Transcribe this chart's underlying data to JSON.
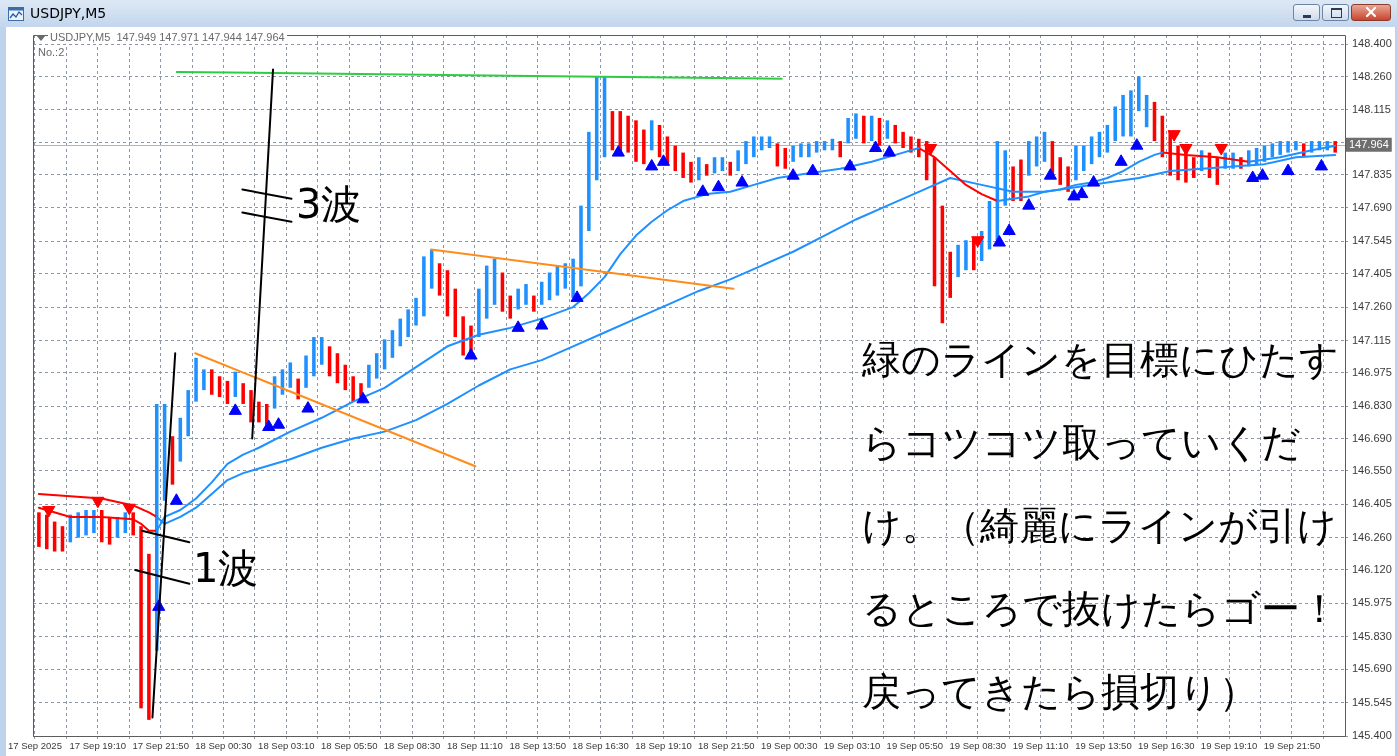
{
  "chart_data": {
    "type": "bar",
    "title": "USDJPY,M5",
    "subtitle": "USDJPY,M5  147.949 147.971 147.944 147.964",
    "annotations": [
      "No.:2",
      "1波",
      "3波",
      "緑のラインを目標にひたすらコツコツ取っていくだけ。（綺麗にラインが引けるところで抜けたらゴー！戻ってきたら損切り）"
    ],
    "xlim": [
      "2025-09-17T16:25",
      "2025-09-20T00:05"
    ],
    "xticks": [
      {
        "value": "2025-09-17T16:30",
        "label": "17 Sep 2025"
      },
      {
        "value": "2025-09-17T17:50",
        "label": null
      },
      {
        "value": "2025-09-17T19:10",
        "label": "17 Sep 19:10"
      },
      {
        "value": "2025-09-17T20:30",
        "label": null
      },
      {
        "value": "2025-09-17T21:50",
        "label": "17 Sep 21:50"
      },
      {
        "value": "2025-09-17T23:10",
        "label": null
      },
      {
        "value": "2025-09-18T00:30",
        "label": "18 Sep 00:30"
      },
      {
        "value": "2025-09-18T01:50",
        "label": null
      },
      {
        "value": "2025-09-18T03:10",
        "label": "18 Sep 03:10"
      },
      {
        "value": "2025-09-18T04:30",
        "label": null
      },
      {
        "value": "2025-09-18T05:50",
        "label": "18 Sep 05:50"
      },
      {
        "value": "2025-09-18T07:10",
        "label": null
      },
      {
        "value": "2025-09-18T08:30",
        "label": "18 Sep 08:30"
      },
      {
        "value": "2025-09-18T09:50",
        "label": null
      },
      {
        "value": "2025-09-18T11:10",
        "label": "18 Sep 11:10"
      },
      {
        "value": "2025-09-18T12:30",
        "label": null
      },
      {
        "value": "2025-09-18T13:50",
        "label": "18 Sep 13:50"
      },
      {
        "value": "2025-09-18T15:10",
        "label": null
      },
      {
        "value": "2025-09-18T16:30",
        "label": "18 Sep 16:30"
      },
      {
        "value": "2025-09-18T17:50",
        "label": null
      },
      {
        "value": "2025-09-18T19:10",
        "label": "18 Sep 19:10"
      },
      {
        "value": "2025-09-18T20:30",
        "label": null
      },
      {
        "value": "2025-09-18T21:50",
        "label": "18 Sep 21:50"
      },
      {
        "value": "2025-09-18T23:10",
        "label": null
      },
      {
        "value": "2025-09-19T00:30",
        "label": "19 Sep 00:30"
      },
      {
        "value": "2025-09-19T01:50",
        "label": null
      },
      {
        "value": "2025-09-19T03:10",
        "label": "19 Sep 03:10"
      },
      {
        "value": "2025-09-19T04:30",
        "label": null
      },
      {
        "value": "2025-09-19T05:50",
        "label": "19 Sep 05:50"
      },
      {
        "value": "2025-09-19T07:10",
        "label": null
      },
      {
        "value": "2025-09-19T08:30",
        "label": "19 Sep 08:30"
      },
      {
        "value": "2025-09-19T09:50",
        "label": null
      },
      {
        "value": "2025-09-19T11:10",
        "label": "19 Sep 11:10"
      },
      {
        "value": "2025-09-19T12:30",
        "label": null
      },
      {
        "value": "2025-09-19T13:50",
        "label": "19 Sep 13:50"
      },
      {
        "value": "2025-09-19T15:10",
        "label": null
      },
      {
        "value": "2025-09-19T16:30",
        "label": "19 Sep 16:30"
      },
      {
        "value": "2025-09-19T17:50",
        "label": null
      },
      {
        "value": "2025-09-19T19:10",
        "label": "19 Sep 19:10"
      },
      {
        "value": "2025-09-19T20:30",
        "label": null
      },
      {
        "value": "2025-09-19T21:50",
        "label": "19 Sep 21:50"
      },
      {
        "value": "2025-09-19T23:10",
        "label": null
      }
    ],
    "ylim": [
      145.4,
      148.44
    ],
    "yticks": [
      {
        "value": 148.4,
        "label": "148.400"
      },
      {
        "value": 148.26,
        "label": "148.260"
      },
      {
        "value": 148.115,
        "label": "148.115"
      },
      {
        "value": 147.975,
        "label": null
      },
      {
        "value": 147.835,
        "label": "147.835"
      },
      {
        "value": 147.69,
        "label": "147.690"
      },
      {
        "value": 147.545,
        "label": "147.545"
      },
      {
        "value": 147.405,
        "label": "147.405"
      },
      {
        "value": 147.26,
        "label": "147.260"
      },
      {
        "value": 147.115,
        "label": "147.115"
      },
      {
        "value": 146.975,
        "label": "146.975"
      },
      {
        "value": 146.83,
        "label": "146.830"
      },
      {
        "value": 146.69,
        "label": "146.690"
      },
      {
        "value": 146.55,
        "label": "146.550"
      },
      {
        "value": 146.405,
        "label": "146.405"
      },
      {
        "value": 146.26,
        "label": "146.260"
      },
      {
        "value": 146.12,
        "label": "146.120"
      },
      {
        "value": 145.975,
        "label": "145.975"
      },
      {
        "value": 145.83,
        "label": "145.830"
      },
      {
        "value": 145.69,
        "label": "145.690"
      },
      {
        "value": 145.545,
        "label": "145.545"
      },
      {
        "value": 145.4,
        "label": "145.400"
      }
    ],
    "grid": true,
    "ref_lines": [
      {
        "axis": "y",
        "value": 147.964,
        "label": "147.964",
        "color": "#b4b4b4"
      }
    ],
    "series": [
      {
        "color": "#1e90ff",
        "x": [
          "2025-09-17T18:00",
          "2025-09-17T18:20",
          "2025-09-17T18:40",
          "2025-09-17T19:00",
          "2025-09-17T20:00",
          "2025-09-17T20:20",
          "2025-09-17T21:40",
          "2025-09-17T22:00",
          "2025-09-17T22:40",
          "2025-09-17T23:00",
          "2025-09-17T23:20",
          "2025-09-17T23:40",
          "2025-09-18T01:00",
          "2025-09-18T02:40",
          "2025-09-18T03:00",
          "2025-09-18T03:20",
          "2025-09-18T04:00",
          "2025-09-18T04:20",
          "2025-09-18T04:40",
          "2025-09-18T06:40",
          "2025-09-18T07:00",
          "2025-09-18T07:20",
          "2025-09-18T07:40",
          "2025-09-18T08:00",
          "2025-09-18T08:20",
          "2025-09-18T08:40",
          "2025-09-18T09:00",
          "2025-09-18T09:20",
          "2025-09-18T11:20",
          "2025-09-18T11:40",
          "2025-09-18T12:00",
          "2025-09-18T13:00",
          "2025-09-18T13:20",
          "2025-09-18T14:00",
          "2025-09-18T14:20",
          "2025-09-18T14:40",
          "2025-09-18T15:00",
          "2025-09-18T15:20",
          "2025-09-18T15:40",
          "2025-09-18T16:00",
          "2025-09-18T16:20",
          "2025-09-18T16:40",
          "2025-09-18T18:40",
          "2025-09-18T20:40",
          "2025-09-18T21:20",
          "2025-09-18T21:40",
          "2025-09-18T22:20",
          "2025-09-18T22:40",
          "2025-09-18T23:00",
          "2025-09-18T23:20",
          "2025-09-18T23:40",
          "2025-09-19T00:40",
          "2025-09-19T01:00",
          "2025-09-19T01:20",
          "2025-09-19T01:40",
          "2025-09-19T02:00",
          "2025-09-19T02:20",
          "2025-09-19T03:00",
          "2025-09-19T03:20",
          "2025-09-19T04:00",
          "2025-09-19T04:40",
          "2025-09-19T07:40",
          "2025-09-19T08:00",
          "2025-09-19T08:40",
          "2025-09-19T09:00",
          "2025-09-19T09:20",
          "2025-09-19T09:40",
          "2025-09-19T10:40",
          "2025-09-19T11:00",
          "2025-09-19T11:20",
          "2025-09-19T12:40",
          "2025-09-19T13:00",
          "2025-09-19T13:20",
          "2025-09-19T13:40",
          "2025-09-19T14:00",
          "2025-09-19T14:20",
          "2025-09-19T14:40",
          "2025-09-19T15:00",
          "2025-09-19T15:20",
          "2025-09-19T15:40",
          "2025-09-19T18:00",
          "2025-09-19T19:00",
          "2025-09-19T19:20",
          "2025-09-19T20:00",
          "2025-09-19T20:20",
          "2025-09-19T20:40",
          "2025-09-19T21:00",
          "2025-09-19T21:20",
          "2025-09-19T21:40",
          "2025-09-19T22:00",
          "2025-09-19T22:40",
          "2025-09-19T23:00",
          "2025-09-19T23:20"
        ],
        "base": [
          146.24,
          146.26,
          146.27,
          146.28,
          146.26,
          146.28,
          145.77,
          146.42,
          146.59,
          146.7,
          146.85,
          146.9,
          146.87,
          146.82,
          146.88,
          146.91,
          146.91,
          146.96,
          147.01,
          146.91,
          146.95,
          146.99,
          147.04,
          147.09,
          147.13,
          147.18,
          147.22,
          147.34,
          147.13,
          147.21,
          147.27,
          147.25,
          147.27,
          147.27,
          147.29,
          147.31,
          147.34,
          147.3,
          147.35,
          147.59,
          147.81,
          147.91,
          147.94,
          147.81,
          147.84,
          147.85,
          147.85,
          147.88,
          147.91,
          147.94,
          147.95,
          147.89,
          147.91,
          147.91,
          147.93,
          147.94,
          147.94,
          147.97,
          147.99,
          147.98,
          147.99,
          147.39,
          147.42,
          147.46,
          147.51,
          147.55,
          147.7,
          147.83,
          147.87,
          147.89,
          147.81,
          147.85,
          147.88,
          147.91,
          147.93,
          147.98,
          148.0,
          148.0,
          148.11,
          148.04,
          147.85,
          147.86,
          147.86,
          147.87,
          147.88,
          147.89,
          147.91,
          147.92,
          147.93,
          147.94,
          147.93,
          147.94,
          147.94
        ],
        "values": [
          0.12,
          0.11,
          0.11,
          0.1,
          0.09,
          0.09,
          1.07,
          0.42,
          0.19,
          0.2,
          0.19,
          0.09,
          0.11,
          0.14,
          0.11,
          0.11,
          0.14,
          0.17,
          0.12,
          0.1,
          0.11,
          0.13,
          0.12,
          0.12,
          0.12,
          0.12,
          0.26,
          0.17,
          0.21,
          0.23,
          0.2,
          0.09,
          0.09,
          0.1,
          0.12,
          0.13,
          0.11,
          0.17,
          0.35,
          0.43,
          0.45,
          0.35,
          0.13,
          0.1,
          0.07,
          0.06,
          0.09,
          0.1,
          0.09,
          0.06,
          0.05,
          0.07,
          0.06,
          0.06,
          0.05,
          0.04,
          0.05,
          0.11,
          0.11,
          0.11,
          0.08,
          0.14,
          0.13,
          0.13,
          0.21,
          0.43,
          0.24,
          0.15,
          0.13,
          0.13,
          0.15,
          0.11,
          0.12,
          0.11,
          0.12,
          0.15,
          0.18,
          0.2,
          0.15,
          0.14,
          0.09,
          0.07,
          0.07,
          0.07,
          0.07,
          0.07,
          0.06,
          0.06,
          0.05,
          0.04,
          0.05,
          0.04,
          0.04
        ]
      },
      {
        "color": "#ff0000",
        "x": [
          "2025-09-17T16:40",
          "2025-09-17T17:00",
          "2025-09-17T17:20",
          "2025-09-17T17:40",
          "2025-09-17T19:20",
          "2025-09-17T19:40",
          "2025-09-17T20:40",
          "2025-09-17T21:00",
          "2025-09-17T21:20",
          "2025-09-17T22:20",
          "2025-09-18T00:00",
          "2025-09-18T00:20",
          "2025-09-18T00:40",
          "2025-09-18T01:20",
          "2025-09-18T01:40",
          "2025-09-18T02:00",
          "2025-09-18T02:20",
          "2025-09-18T03:40",
          "2025-09-18T05:00",
          "2025-09-18T05:20",
          "2025-09-18T05:40",
          "2025-09-18T06:00",
          "2025-09-18T06:20",
          "2025-09-18T09:40",
          "2025-09-18T10:00",
          "2025-09-18T10:20",
          "2025-09-18T10:40",
          "2025-09-18T11:00",
          "2025-09-18T12:20",
          "2025-09-18T12:40",
          "2025-09-18T13:40",
          "2025-09-18T17:00",
          "2025-09-18T17:20",
          "2025-09-18T17:40",
          "2025-09-18T18:00",
          "2025-09-18T18:20",
          "2025-09-18T19:00",
          "2025-09-18T19:20",
          "2025-09-18T19:40",
          "2025-09-18T20:00",
          "2025-09-18T20:20",
          "2025-09-18T21:00",
          "2025-09-18T22:00",
          "2025-09-19T00:00",
          "2025-09-19T00:20",
          "2025-09-19T02:40",
          "2025-09-19T03:40",
          "2025-09-19T04:20",
          "2025-09-19T05:00",
          "2025-09-19T05:20",
          "2025-09-19T05:40",
          "2025-09-19T06:00",
          "2025-09-19T06:20",
          "2025-09-19T06:40",
          "2025-09-19T07:00",
          "2025-09-19T07:20",
          "2025-09-19T08:20",
          "2025-09-19T10:00",
          "2025-09-19T10:20",
          "2025-09-19T11:40",
          "2025-09-19T12:00",
          "2025-09-19T12:20",
          "2025-09-19T16:00",
          "2025-09-19T16:20",
          "2025-09-19T16:40",
          "2025-09-19T17:00",
          "2025-09-19T17:20",
          "2025-09-19T17:40",
          "2025-09-19T18:20",
          "2025-09-19T18:40",
          "2025-09-19T19:40",
          "2025-09-19T22:20",
          "2025-09-19T23:40"
        ],
        "base": [
          146.22,
          146.21,
          146.2,
          146.2,
          146.24,
          146.23,
          146.27,
          145.52,
          145.47,
          146.49,
          146.88,
          146.87,
          146.84,
          146.84,
          146.76,
          146.76,
          146.75,
          146.86,
          146.96,
          146.93,
          146.9,
          146.85,
          146.87,
          147.31,
          147.22,
          147.13,
          147.05,
          147.05,
          147.24,
          147.21,
          147.24,
          147.94,
          147.92,
          147.93,
          147.89,
          147.88,
          147.91,
          147.88,
          147.85,
          147.82,
          147.8,
          147.83,
          147.83,
          147.87,
          147.86,
          147.91,
          147.97,
          147.96,
          147.97,
          147.95,
          147.93,
          147.91,
          147.81,
          147.35,
          147.19,
          147.3,
          147.42,
          147.72,
          147.72,
          147.83,
          147.79,
          147.76,
          147.98,
          147.91,
          147.83,
          147.81,
          147.8,
          147.82,
          147.82,
          147.79,
          147.86,
          147.91,
          147.93
        ],
        "values": [
          0.15,
          0.15,
          0.13,
          0.11,
          0.14,
          0.12,
          0.1,
          0.79,
          0.72,
          0.21,
          0.11,
          0.09,
          0.1,
          0.09,
          0.14,
          0.09,
          0.09,
          0.09,
          0.13,
          0.13,
          0.11,
          0.11,
          0.06,
          0.14,
          0.2,
          0.21,
          0.17,
          0.13,
          0.17,
          0.1,
          0.07,
          0.17,
          0.19,
          0.16,
          0.18,
          0.15,
          0.14,
          0.12,
          0.11,
          0.11,
          0.09,
          0.05,
          0.06,
          0.1,
          0.09,
          0.07,
          0.12,
          0.12,
          0.08,
          0.07,
          0.07,
          0.08,
          0.17,
          0.56,
          0.51,
          0.2,
          0.14,
          0.15,
          0.18,
          0.15,
          0.12,
          0.11,
          0.17,
          0.18,
          0.19,
          0.15,
          0.14,
          0.09,
          0.11,
          0.12,
          0.05,
          0.06,
          0.05
        ]
      },
      {
        "type": "line",
        "color": "#ff0000",
        "x": [
          "2025-09-17T16:40",
          "2025-09-17T18:00",
          "2025-09-17T19:20",
          "2025-09-17T20:40",
          "2025-09-17T21:20",
          "2025-09-17T21:40"
        ],
        "values": [
          146.45,
          146.44,
          146.43,
          146.4,
          146.37,
          146.35
        ]
      },
      {
        "type": "line",
        "color": "#1e90ff",
        "x": [
          "2025-09-17T21:40",
          "2025-09-17T22:00",
          "2025-09-17T22:40",
          "2025-09-17T23:20",
          "2025-09-18T00:00",
          "2025-09-18T00:40",
          "2025-09-18T01:20",
          "2025-09-18T02:00",
          "2025-09-18T03:20",
          "2025-09-18T04:40",
          "2025-09-18T06:00",
          "2025-09-18T07:20",
          "2025-09-18T08:40",
          "2025-09-18T10:00",
          "2025-09-18T11:20",
          "2025-09-18T12:40",
          "2025-09-18T14:00",
          "2025-09-18T15:20",
          "2025-09-18T16:40",
          "2025-09-18T18:00",
          "2025-09-18T19:20",
          "2025-09-18T20:40",
          "2025-09-18T22:00",
          "2025-09-18T23:20",
          "2025-09-19T00:40",
          "2025-09-19T02:00",
          "2025-09-19T03:20",
          "2025-09-19T04:40",
          "2025-09-19T06:00",
          "2025-09-19T07:20",
          "2025-09-19T08:40",
          "2025-09-19T10:00",
          "2025-09-19T11:20",
          "2025-09-19T12:40",
          "2025-09-19T14:00",
          "2025-09-19T15:20",
          "2025-09-19T16:40",
          "2025-09-19T18:00",
          "2025-09-19T19:20",
          "2025-09-19T20:40",
          "2025-09-19T22:00",
          "2025-09-19T23:40"
        ],
        "values": [
          146.35,
          146.32,
          146.35,
          146.39,
          146.45,
          146.51,
          146.54,
          146.56,
          146.6,
          146.65,
          146.69,
          146.72,
          146.77,
          146.84,
          146.92,
          146.99,
          147.03,
          147.09,
          147.15,
          147.21,
          147.27,
          147.33,
          147.38,
          147.44,
          147.5,
          147.57,
          147.64,
          147.7,
          147.76,
          147.82,
          147.79,
          147.76,
          147.76,
          147.78,
          147.8,
          147.82,
          147.85,
          147.86,
          147.87,
          147.88,
          147.91,
          147.92
        ]
      },
      {
        "type": "line",
        "color": "#ff0000",
        "x": [
          "2025-09-17T16:40",
          "2025-09-17T18:00",
          "2025-09-17T19:20",
          "2025-09-17T20:40",
          "2025-09-17T21:00",
          "2025-09-17T21:20",
          "2025-09-17T21:40",
          "2025-09-18T12:40",
          "2025-09-19T06:00",
          "2025-09-19T06:40",
          "2025-09-19T07:20",
          "2025-09-19T08:00",
          "2025-09-19T08:40",
          "2025-09-19T09:20",
          "2025-09-19T12:40",
          "2025-09-19T16:20",
          "2025-09-19T17:20",
          "2025-09-19T18:40",
          "2025-09-19T20:00"
        ],
        "values": [
          146.39,
          146.35,
          146.35,
          146.34,
          146.32,
          146.29,
          146.29,
          null,
          147.95,
          147.91,
          147.85,
          147.79,
          147.75,
          147.72,
          null,
          147.93,
          147.92,
          147.91,
          147.89
        ]
      },
      {
        "type": "line",
        "color": "#1e90ff",
        "x": [
          "2025-09-17T21:40",
          "2025-09-17T22:00",
          "2025-09-17T22:40",
          "2025-09-17T23:20",
          "2025-09-18T00:00",
          "2025-09-18T00:40",
          "2025-09-18T01:20",
          "2025-09-18T02:00",
          "2025-09-18T03:20",
          "2025-09-18T04:40",
          "2025-09-18T06:00",
          "2025-09-18T07:20",
          "2025-09-18T08:40",
          "2025-09-18T10:00",
          "2025-09-18T11:20",
          "2025-09-18T12:40",
          "2025-09-18T14:00",
          "2025-09-18T15:20",
          "2025-09-18T16:00",
          "2025-09-18T16:40",
          "2025-09-18T17:20",
          "2025-09-18T18:00",
          "2025-09-18T18:40",
          "2025-09-18T19:20",
          "2025-09-18T20:00",
          "2025-09-18T21:00",
          "2025-09-18T22:00",
          "2025-09-18T23:00",
          "2025-09-19T00:00",
          "2025-09-19T01:20",
          "2025-09-19T02:40",
          "2025-09-19T04:00",
          "2025-09-19T05:20",
          "2025-09-19T06:00",
          "2025-09-19T07:40",
          "2025-09-19T09:20",
          "2025-09-19T10:00",
          "2025-09-19T10:40",
          "2025-09-19T11:20",
          "2025-09-19T12:00",
          "2025-09-19T12:40",
          "2025-09-19T13:20",
          "2025-09-19T14:00",
          "2025-09-19T14:40",
          "2025-09-19T15:20",
          "2025-09-19T16:00",
          "2025-09-19T16:20",
          "2025-09-19T18:00",
          "2025-09-19T20:00",
          "2025-09-19T21:20",
          "2025-09-19T22:40",
          "2025-09-19T23:40"
        ],
        "values": [
          146.29,
          146.35,
          146.38,
          146.43,
          146.5,
          146.58,
          146.62,
          146.65,
          146.72,
          146.78,
          146.85,
          146.91,
          147.0,
          147.09,
          147.14,
          147.17,
          147.21,
          147.26,
          147.32,
          147.39,
          147.49,
          147.57,
          147.63,
          147.68,
          147.72,
          147.75,
          147.76,
          147.79,
          147.82,
          147.84,
          147.86,
          147.89,
          147.93,
          147.95,
          null,
          147.72,
          147.73,
          147.74,
          147.76,
          147.77,
          147.79,
          147.8,
          147.82,
          147.85,
          147.89,
          147.92,
          147.93,
          null,
          147.89,
          147.91,
          147.94,
          147.96
        ]
      },
      {
        "type": "scatter",
        "color": "#0000ff",
        "marker": "triangle",
        "x": [
          "2025-09-17T21:45",
          "2025-09-17T22:30",
          "2025-09-18T01:00",
          "2025-09-18T02:25",
          "2025-09-18T02:50",
          "2025-09-18T04:05",
          "2025-09-18T06:25",
          "2025-09-18T11:00",
          "2025-09-18T13:00",
          "2025-09-18T14:00",
          "2025-09-18T15:30",
          "2025-09-18T17:15",
          "2025-09-18T18:40",
          "2025-09-18T19:10",
          "2025-09-18T20:50",
          "2025-09-18T21:30",
          "2025-09-18T22:30",
          "2025-09-19T00:40",
          "2025-09-19T01:30",
          "2025-09-19T03:05",
          "2025-09-19T04:10",
          "2025-09-19T04:45",
          "2025-09-19T09:25",
          "2025-09-19T09:50",
          "2025-09-19T10:40",
          "2025-09-19T11:35",
          "2025-09-19T12:35",
          "2025-09-19T12:55",
          "2025-09-19T13:25",
          "2025-09-19T14:35",
          "2025-09-19T15:15",
          "2025-09-19T20:10",
          "2025-09-19T20:35",
          "2025-09-19T21:40",
          "2025-09-19T23:05"
        ],
        "values": [
          145.96,
          146.42,
          146.81,
          146.74,
          146.75,
          146.82,
          146.86,
          147.05,
          147.17,
          147.18,
          147.3,
          147.93,
          147.87,
          147.89,
          147.76,
          147.78,
          147.8,
          147.83,
          147.85,
          147.87,
          147.95,
          147.93,
          147.54,
          147.59,
          147.7,
          147.83,
          147.74,
          147.75,
          147.8,
          147.89,
          147.96,
          147.82,
          147.83,
          147.85,
          147.87
        ]
      },
      {
        "type": "scatter",
        "color": "#ff0000",
        "marker": "triangle-down",
        "x": [
          "2025-09-17T17:05",
          "2025-09-17T19:10",
          "2025-09-17T20:30",
          "2025-09-19T06:30",
          "2025-09-19T08:30",
          "2025-09-19T16:50",
          "2025-09-19T17:20",
          "2025-09-19T18:50"
        ],
        "values": [
          146.38,
          146.42,
          146.39,
          147.95,
          147.55,
          148.01,
          147.95,
          147.95
        ]
      },
      {
        "type": "line",
        "color": "#2ecc40",
        "x": [
          "2025-09-17T22:31",
          "2025-09-19T00:11"
        ],
        "values": [
          148.28,
          148.25
        ]
      },
      {
        "type": "line",
        "color": "#ff8c1a",
        "x": [
          "2025-09-17T23:18",
          "2025-09-18T11:11"
        ],
        "values": [
          147.06,
          146.57
        ]
      },
      {
        "type": "line",
        "color": "#ff8c1a",
        "x": [
          "2025-09-18T09:18",
          "2025-09-18T22:08"
        ],
        "values": [
          147.51,
          147.34
        ]
      },
      {
        "type": "line",
        "color": "#000000",
        "x": [
          "2025-09-17T22:27",
          "2025-09-17T21:29"
        ],
        "values": [
          147.06,
          145.48
        ]
      },
      {
        "type": "line",
        "color": "#000000",
        "x": [
          "2025-09-17T21:02",
          "2025-09-17T23:03"
        ],
        "values": [
          146.29,
          146.24
        ]
      },
      {
        "type": "line",
        "color": "#000000",
        "x": [
          "2025-09-17T20:45",
          "2025-09-17T23:03"
        ],
        "values": [
          146.12,
          146.06
        ]
      },
      {
        "type": "line",
        "color": "#000000",
        "x": [
          "2025-09-18T02:36",
          "2025-09-18T01:43"
        ],
        "values": [
          148.29,
          146.69
        ]
      },
      {
        "type": "line",
        "color": "#000000",
        "x": [
          "2025-09-18T01:18",
          "2025-09-18T03:23"
        ],
        "values": [
          147.77,
          147.73
        ]
      },
      {
        "type": "line",
        "color": "#000000",
        "x": [
          "2025-09-18T01:18",
          "2025-09-18T03:23"
        ],
        "values": [
          147.67,
          147.63
        ]
      }
    ]
  }
}
